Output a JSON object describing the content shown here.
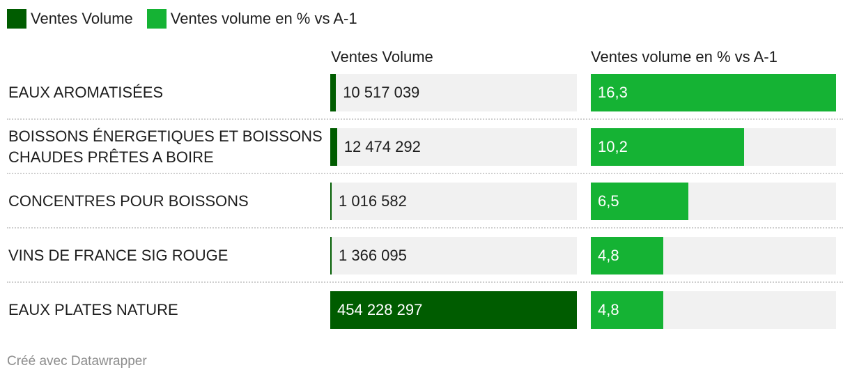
{
  "colors": {
    "volume": "#005c00",
    "pct": "#15b334",
    "track": "#f1f1f1"
  },
  "legend": [
    {
      "label": "Ventes Volume",
      "color": "#005c00"
    },
    {
      "label": "Ventes volume en % vs A-1",
      "color": "#15b334"
    }
  ],
  "chart_data": {
    "type": "bar",
    "columns": [
      "Ventes Volume",
      "Ventes volume en % vs A-1"
    ],
    "categories": [
      "EAUX AROMATISÉES",
      "BOISSONS ÉNERGETIQUES ET BOISSONS CHAUDES PRÊTES A BOIRE",
      "CONCENTRES POUR BOISSONS",
      "VINS DE FRANCE SIG ROUGE",
      "EAUX PLATES NATURE"
    ],
    "series": [
      {
        "name": "Ventes Volume",
        "values": [
          10517039,
          12474292,
          1016582,
          1366095,
          454228297
        ],
        "labels": [
          "10 517 039",
          "12 474 292",
          "1 016 582",
          "1 366 095",
          "454 228 297"
        ],
        "max": 454228297
      },
      {
        "name": "Ventes volume en % vs A-1",
        "values": [
          16.3,
          10.2,
          6.5,
          4.8,
          4.8
        ],
        "labels": [
          "16,3",
          "10,2",
          "6,5",
          "4,8",
          "4,8"
        ],
        "max": 16.3
      }
    ]
  },
  "footer": "Créé avec Datawrapper"
}
